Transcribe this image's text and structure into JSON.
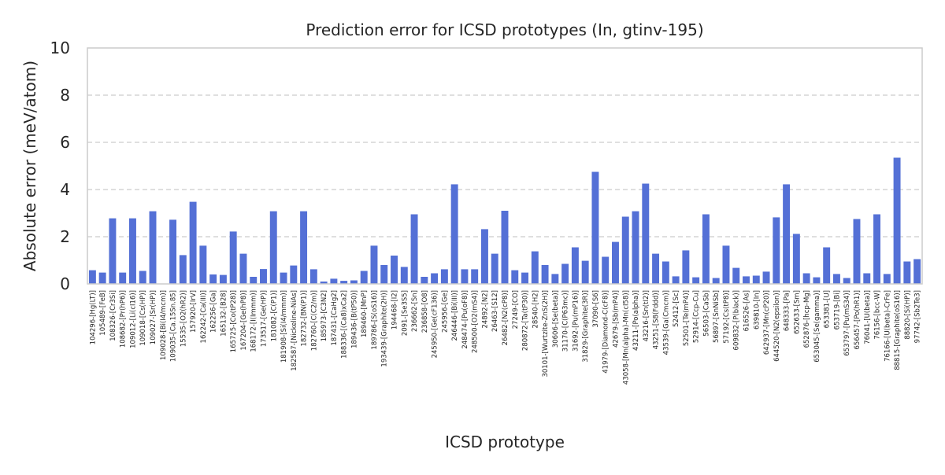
{
  "chart_data": {
    "type": "bar",
    "title": "Prediction error for ICSD prototypes (In, gtinv-195)",
    "xlabel": "ICSD prototype",
    "ylabel": "Absolute error (meV/atom)",
    "ylim": [
      0,
      10
    ],
    "yticks": [
      0,
      2,
      4,
      6,
      8,
      10
    ],
    "grid": "y-dashed",
    "bar_color": "#5470d6",
    "categories": [
      "104296-[Hg(LT)]",
      "105489-[FeB]",
      "108326-[Cr3Si]",
      "108682-[Pr(hP6)]",
      "109012-[Li(cI16)]",
      "109018-[Cs(HP)]",
      "109027-[Sr(HP)]",
      "109028-[Bi(I4/mcm)]",
      "109035-[Ca.15Sn.85]",
      "15535-[O2(hR2)]",
      "157920-[IrV]",
      "162242-[Ca(III)]",
      "162256-[Ga]",
      "165132-[B28]",
      "165725-[Co(tP28)]",
      "167204-[Ge(hP8)]",
      "168172-[I(Immm)]",
      "173517-[Ge(HP)]",
      "181082-[C(P1)]",
      "181908-[Si(I4/mmm)]",
      "182587-[Nickeline-NiAs]",
      "182732-[BN(P1)]",
      "182760-[C(C2/m)]",
      "185973-[C3N2]",
      "187431-[CaHg2]",
      "188336-[(Ca8)xCa2]",
      "189436-[B(tP50)]",
      "189460-[MnP]",
      "189786-[S(oS16)]",
      "193439-[Graphite(2H)]",
      "194468-[I2]",
      "2091-[Se3S5]",
      "236662-[Sn]",
      "236858-[O8]",
      "245950-[Ge(cF136)]",
      "245956-[Ge]",
      "246446-[Bi(III)]",
      "248474-[Pu(oF8)]",
      "248500-[O2(mS4)]",
      "24892-[N2]",
      "26463-[S12]",
      "26482-[N2(cP8)]",
      "27249-[CO]",
      "280872-[Ta(tP30)]",
      "28540-[H2]",
      "30101-[Wurtzite-ZnS(2H)]",
      "30606-[Se(beta)]",
      "31170-[C(P63mc)]",
      "31692-[Pu(mP16)]",
      "31829-[Graphite(3R)]",
      "37090-[S6]",
      "41979-[Diamond-C(cF8)]",
      "42679-[Sb(mP4)]",
      "43058-[Mn(alpha)-Mn(cI58)]",
      "43211-[Po(alpha)]",
      "43216-[Sn(tI2)]",
      "43251-[S8(Fddd)]",
      "43539-[Ga(Cmcm)]",
      "52412-[Sc]",
      "52501-[Te(mP4)]",
      "52914-[Ccp-Cu]",
      "56503-[CaSb]",
      "56897-[SnNiSb]",
      "57192-[Cs(tP8)]",
      "609832-[P(black)]",
      "616526-[As]",
      "639810-[In]",
      "642937-[Mn(cP20)]",
      "644520-[N2(epsilon)]",
      "648333-[Pa]",
      "652633-[Sm]",
      "652876-[hcp-Mg]",
      "653045-[Se(gamma)]",
      "653381-[U]",
      "653719-[Bi]",
      "653797-[Pu(mS34)]",
      "656457-[Po(hR1)]",
      "76041-[U(beta)]",
      "76156-[bcc-W]",
      "76166-[U(beta)-CrFe]",
      "88815-[Graphite(oS16)]",
      "88820-[Si(HP)]",
      "97742-[Sb2Te3]"
    ],
    "values": [
      0.58,
      0.48,
      2.78,
      0.48,
      2.78,
      0.55,
      3.08,
      0.0,
      2.72,
      1.22,
      3.48,
      1.62,
      0.4,
      0.38,
      2.22,
      1.28,
      0.3,
      0.63,
      3.08,
      0.48,
      0.78,
      3.08,
      0.62,
      0.1,
      0.22,
      0.13,
      0.15,
      0.55,
      1.62,
      0.8,
      1.2,
      0.72,
      2.95,
      0.3,
      0.45,
      0.62,
      4.22,
      0.62,
      0.62,
      2.32,
      1.28,
      3.1,
      0.58,
      0.48,
      1.38,
      0.8,
      0.42,
      0.85,
      1.55,
      0.98,
      4.75,
      1.15,
      1.78,
      2.85,
      3.08,
      4.25,
      1.28,
      0.95,
      0.32,
      1.42,
      0.28,
      2.95,
      0.25,
      1.62,
      0.68,
      0.32,
      0.35,
      0.52,
      2.82,
      4.22,
      2.12,
      0.45,
      0.28,
      1.55,
      0.42,
      0.25,
      2.75,
      0.45,
      2.95,
      0.42,
      5.35,
      0.95,
      1.05
    ]
  }
}
